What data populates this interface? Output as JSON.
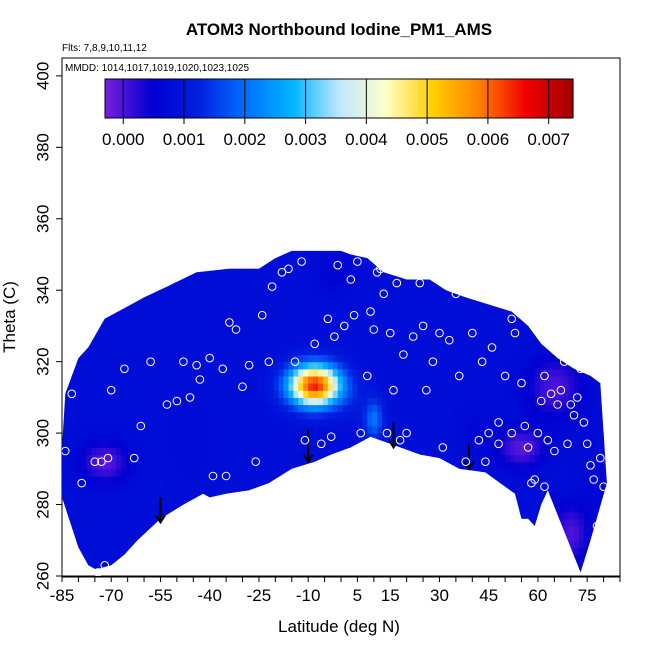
{
  "chart_data": {
    "type": "heatmap",
    "title": "ATOM3 Northbound Iodine_PM1_AMS",
    "flights_note": "Flts: 7,8,9,10,11,12",
    "dates_note": "MMDD: 1014,1017,1019,1020,1023,1025",
    "xlabel": "Latitude (deg N)",
    "ylabel": "Theta (C)",
    "xlim": [
      -85,
      85
    ],
    "ylim": [
      260,
      405
    ],
    "x_ticks": [
      -85,
      -70,
      -55,
      -40,
      -25,
      -10,
      5,
      15,
      30,
      45,
      60,
      75
    ],
    "x_minor_ticks": [
      -80,
      -75,
      -65,
      -60,
      -50,
      -45,
      -35,
      -30,
      -20,
      -15,
      -5,
      0,
      10,
      20,
      25,
      35,
      40,
      50,
      55,
      65,
      70,
      80,
      85
    ],
    "y_ticks": [
      260,
      280,
      300,
      320,
      340,
      360,
      380,
      400
    ],
    "colorbar": {
      "min": -0.0003,
      "max": 0.0074,
      "ticks": [
        0.0,
        0.001,
        0.002,
        0.003,
        0.004,
        0.005,
        0.006,
        0.007
      ],
      "tick_labels": [
        "0.000",
        "0.001",
        "0.002",
        "0.003",
        "0.004",
        "0.005",
        "0.006",
        "0.007"
      ],
      "colors": [
        "#7a1fe0",
        "#0000d0",
        "#0020e0",
        "#0070ff",
        "#00b4ff",
        "#bfe6ff",
        "#ffffc8",
        "#ffd000",
        "#ff8000",
        "#f00000",
        "#a00000"
      ]
    },
    "domain_outline": [
      [
        -85,
        296
      ],
      [
        -84,
        311
      ],
      [
        -80,
        321
      ],
      [
        -77,
        324
      ],
      [
        -72,
        332
      ],
      [
        -66,
        335
      ],
      [
        -60,
        338
      ],
      [
        -53,
        341
      ],
      [
        -44,
        345
      ],
      [
        -34,
        346
      ],
      [
        -25,
        346
      ],
      [
        -20,
        349
      ],
      [
        -15,
        351
      ],
      [
        -8,
        351
      ],
      [
        0,
        351
      ],
      [
        3,
        350
      ],
      [
        8,
        349
      ],
      [
        13,
        345
      ],
      [
        20,
        343
      ],
      [
        27,
        343
      ],
      [
        32,
        340
      ],
      [
        38,
        338
      ],
      [
        45,
        336
      ],
      [
        52,
        334
      ],
      [
        57,
        330
      ],
      [
        61,
        325
      ],
      [
        66,
        321
      ],
      [
        71,
        318
      ],
      [
        76,
        316
      ],
      [
        79,
        314
      ],
      [
        80,
        300
      ],
      [
        81,
        286
      ],
      [
        76,
        270
      ],
      [
        73,
        261
      ],
      [
        63,
        284
      ],
      [
        61,
        280
      ],
      [
        59,
        274
      ],
      [
        57,
        276
      ],
      [
        55,
        276
      ],
      [
        53,
        283
      ],
      [
        44,
        289
      ],
      [
        36,
        290
      ],
      [
        30,
        293
      ],
      [
        24,
        294
      ],
      [
        15,
        297
      ],
      [
        9,
        299
      ],
      [
        3,
        296
      ],
      [
        -3,
        294
      ],
      [
        -8,
        292
      ],
      [
        -15,
        290
      ],
      [
        -22,
        286
      ],
      [
        -28,
        284
      ],
      [
        -35,
        283
      ],
      [
        -40,
        282
      ],
      [
        -42,
        283
      ],
      [
        -48,
        280
      ],
      [
        -55,
        276
      ],
      [
        -62,
        270
      ],
      [
        -66,
        266
      ],
      [
        -70,
        263
      ],
      [
        -74,
        262
      ],
      [
        -75,
        262
      ],
      [
        -77,
        263
      ],
      [
        -80,
        268
      ],
      [
        -85,
        282
      ]
    ],
    "background_level": 0.0008,
    "hotspots": [
      {
        "lat": -8,
        "theta": 313.5,
        "value": 0.0065,
        "sx": 5.5,
        "sy": 4.0
      },
      {
        "lat": 4,
        "theta": 308,
        "value": 0.001,
        "sx": 3.0,
        "sy": 4.0
      },
      {
        "lat": 10,
        "theta": 304,
        "value": 0.0022,
        "sx": 2.0,
        "sy": 4.0
      },
      {
        "lat": -35,
        "theta": 314,
        "value": 0.0008,
        "sx": 4.0,
        "sy": 8.0
      },
      {
        "lat": -46,
        "theta": 300,
        "value": 0.0007,
        "sx": 4.0,
        "sy": 8.0
      },
      {
        "lat": -14,
        "theta": 296,
        "value": 0.0008,
        "sx": 5.0,
        "sy": 4.0
      },
      {
        "lat": 1,
        "theta": 330,
        "value": 0.0008,
        "sx": 4.0,
        "sy": 5.0
      },
      {
        "lat": -2,
        "theta": 345,
        "value": 0.0005,
        "sx": 4.0,
        "sy": 4.0
      },
      {
        "lat": 42,
        "theta": 300,
        "value": 0.0006,
        "sx": 4.0,
        "sy": 5.0
      },
      {
        "lat": 74,
        "theta": 300,
        "value": 0.0007,
        "sx": 3.0,
        "sy": 6.0
      },
      {
        "lat": 78,
        "theta": 285,
        "value": 0.0006,
        "sx": 3.0,
        "sy": 6.0
      },
      {
        "lat": -72,
        "theta": 292,
        "value": -0.0002,
        "sx": 5.0,
        "sy": 4.0
      },
      {
        "lat": 55,
        "theta": 296,
        "value": -0.0002,
        "sx": 5.0,
        "sy": 4.0
      },
      {
        "lat": 65,
        "theta": 313,
        "value": -0.0001,
        "sx": 6.0,
        "sy": 6.0
      },
      {
        "lat": 70,
        "theta": 272,
        "value": -0.0001,
        "sx": 4.0,
        "sy": 6.0
      }
    ],
    "arrows": [
      {
        "lat": -55,
        "theta_top": 282,
        "theta_tip": 275
      },
      {
        "lat": -10,
        "theta_top": 301,
        "theta_tip": 292
      },
      {
        "lat": 16,
        "theta_top": 303,
        "theta_tip": 296
      },
      {
        "lat": 39,
        "theta_top": 297,
        "theta_tip": 290
      }
    ],
    "observations": [
      [
        -84,
        295
      ],
      [
        -82,
        311
      ],
      [
        -79,
        286
      ],
      [
        -75,
        292
      ],
      [
        -73,
        292
      ],
      [
        -71,
        293
      ],
      [
        -74,
        261
      ],
      [
        -72,
        263
      ],
      [
        -63,
        293
      ],
      [
        -61,
        302
      ],
      [
        -62,
        266
      ],
      [
        -53,
        308
      ],
      [
        -50,
        309
      ],
      [
        -46,
        310
      ],
      [
        -44,
        319
      ],
      [
        -43,
        315
      ],
      [
        -40,
        321
      ],
      [
        -39,
        288
      ],
      [
        -35,
        288
      ],
      [
        -34,
        331
      ],
      [
        -32,
        329
      ],
      [
        -30,
        313
      ],
      [
        -26,
        292
      ],
      [
        -24,
        333
      ],
      [
        -22,
        320
      ],
      [
        -21,
        341
      ],
      [
        -18,
        345
      ],
      [
        -16,
        346
      ],
      [
        -12,
        348
      ],
      [
        -11,
        298
      ],
      [
        -8,
        325
      ],
      [
        -6,
        297
      ],
      [
        -4,
        332
      ],
      [
        -3,
        299
      ],
      [
        -2,
        327
      ],
      [
        -1,
        347
      ],
      [
        1,
        330
      ],
      [
        3,
        343
      ],
      [
        4,
        333
      ],
      [
        5,
        348
      ],
      [
        6,
        300
      ],
      [
        9,
        334
      ],
      [
        10,
        329
      ],
      [
        11,
        345
      ],
      [
        12,
        346
      ],
      [
        13,
        339
      ],
      [
        14,
        300
      ],
      [
        15,
        328
      ],
      [
        16,
        312
      ],
      [
        17,
        342
      ],
      [
        18,
        298
      ],
      [
        19,
        322
      ],
      [
        20,
        300
      ],
      [
        22,
        327
      ],
      [
        24,
        342
      ],
      [
        26,
        312
      ],
      [
        28,
        320
      ],
      [
        30,
        328
      ],
      [
        31,
        296
      ],
      [
        33,
        326
      ],
      [
        35,
        339
      ],
      [
        38,
        292
      ],
      [
        40,
        328
      ],
      [
        42,
        298
      ],
      [
        43,
        320
      ],
      [
        45,
        300
      ],
      [
        46,
        324
      ],
      [
        48,
        303
      ],
      [
        50,
        316
      ],
      [
        52,
        332
      ],
      [
        53,
        328
      ],
      [
        55,
        314
      ],
      [
        56,
        302
      ],
      [
        57,
        296
      ],
      [
        58,
        286
      ],
      [
        59,
        287
      ],
      [
        60,
        300
      ],
      [
        61,
        309
      ],
      [
        62,
        316
      ],
      [
        63,
        298
      ],
      [
        64,
        311
      ],
      [
        65,
        295
      ],
      [
        66,
        308
      ],
      [
        67,
        312
      ],
      [
        68,
        320
      ],
      [
        69,
        297
      ],
      [
        70,
        308
      ],
      [
        71,
        305
      ],
      [
        72,
        310
      ],
      [
        73,
        318
      ],
      [
        74,
        303
      ],
      [
        75,
        297
      ],
      [
        76,
        291
      ],
      [
        77,
        287
      ],
      [
        78,
        274
      ],
      [
        79,
        293
      ],
      [
        80,
        285
      ],
      [
        62,
        285
      ],
      [
        52,
        300
      ],
      [
        48,
        297
      ],
      [
        44,
        292
      ],
      [
        36,
        316
      ],
      [
        25,
        330
      ],
      [
        8,
        316
      ],
      [
        -14,
        320
      ],
      [
        -28,
        319
      ],
      [
        -36,
        318
      ],
      [
        -48,
        320
      ],
      [
        -58,
        320
      ],
      [
        -66,
        318
      ],
      [
        -70,
        312
      ]
    ]
  }
}
